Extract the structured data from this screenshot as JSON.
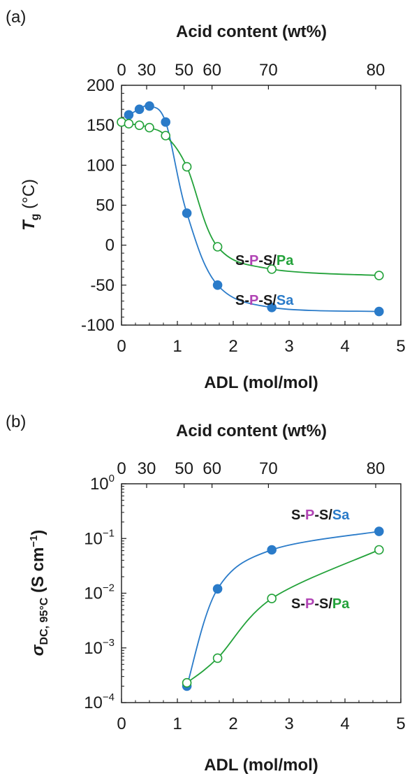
{
  "chart_data": [
    {
      "type": "scatter",
      "panel_label": "(a)",
      "xlabel": "ADL (mol/mol)",
      "top_axis_title": "Acid content (wt%)",
      "ylabel": {
        "main": "T",
        "sub": "g",
        "unit": " (°C)"
      },
      "xlim": [
        0,
        5
      ],
      "ylim": [
        -100,
        200
      ],
      "x_ticks": [
        "0",
        "1",
        "2",
        "3",
        "4",
        "5"
      ],
      "y_ticks": [
        "200",
        "150",
        "100",
        "50",
        "0",
        "-50",
        "-100"
      ],
      "top_ticks": [
        {
          "label": "0",
          "x": 0.0
        },
        {
          "label": "30",
          "x": 0.45
        },
        {
          "label": "50",
          "x": 1.12
        },
        {
          "label": "60",
          "x": 1.62
        },
        {
          "label": "70",
          "x": 2.63
        },
        {
          "label": "80",
          "x": 4.55
        }
      ],
      "series": [
        {
          "name": "S-P-S/Sa",
          "label_parts": [
            "S-",
            "P",
            "-S/",
            "Sa"
          ],
          "color": "#2a7bc9",
          "marker": "filled",
          "x": [
            0.13,
            0.32,
            0.5,
            0.79,
            1.17,
            1.72,
            2.69,
            4.61
          ],
          "y": [
            163,
            170,
            174,
            154,
            40,
            -50,
            -78,
            -83
          ]
        },
        {
          "name": "S-P-S/Pa",
          "label_parts": [
            "S-",
            "P",
            "-S/",
            "Pa"
          ],
          "color": "#23a23a",
          "marker": "open",
          "x": [
            0.0,
            0.13,
            0.32,
            0.5,
            0.79,
            1.17,
            1.72,
            2.69,
            4.61
          ],
          "y": [
            154,
            152,
            150,
            147,
            137,
            98,
            -2,
            -30,
            -38
          ]
        }
      ]
    },
    {
      "type": "scatter",
      "panel_label": "(b)",
      "xlabel": "ADL (mol/mol)",
      "top_axis_title": "Acid content (wt%)",
      "ylabel": {
        "main": "σ",
        "sub": "DC, 95°C",
        "unit": " (S cm",
        "sup": "−1",
        "close": ")"
      },
      "yscale": "log",
      "xlim": [
        0,
        5
      ],
      "ylim_exp": [
        -4,
        0
      ],
      "x_ticks": [
        "0",
        "1",
        "2",
        "3",
        "4",
        "5"
      ],
      "y_ticks": [
        {
          "base": "10",
          "exp": "0"
        },
        {
          "base": "10",
          "exp": "−1"
        },
        {
          "base": "10",
          "exp": "−2"
        },
        {
          "base": "10",
          "exp": "−3"
        },
        {
          "base": "10",
          "exp": "−4"
        }
      ],
      "top_ticks": [
        {
          "label": "0",
          "x": 0.0
        },
        {
          "label": "30",
          "x": 0.45
        },
        {
          "label": "50",
          "x": 1.12
        },
        {
          "label": "60",
          "x": 1.62
        },
        {
          "label": "70",
          "x": 2.63
        },
        {
          "label": "80",
          "x": 4.55
        }
      ],
      "series": [
        {
          "name": "S-P-S/Sa",
          "label_parts": [
            "S-",
            "P",
            "-S/",
            "Sa"
          ],
          "color": "#2a7bc9",
          "marker": "filled",
          "x": [
            1.17,
            1.72,
            2.69,
            4.61
          ],
          "y": [
            0.0002,
            0.012,
            0.062,
            0.135
          ]
        },
        {
          "name": "S-P-S/Pa",
          "label_parts": [
            "S-",
            "P",
            "-S/",
            "Pa"
          ],
          "color": "#23a23a",
          "marker": "open",
          "x": [
            1.17,
            1.72,
            2.69,
            4.61
          ],
          "y": [
            0.00023,
            0.00065,
            0.008,
            0.062
          ]
        }
      ]
    }
  ],
  "colors": {
    "accent_p": "#b043b4",
    "axis": "#1a1a1a"
  }
}
